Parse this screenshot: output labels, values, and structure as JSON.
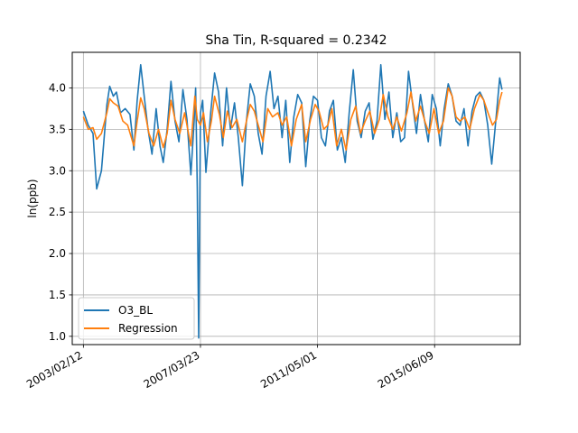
{
  "chart_data": {
    "type": "line",
    "title": "Sha Tin, R-squared = 0.2342",
    "xlabel": "",
    "ylabel": "ln(ppb)",
    "ylim": [
      0.9,
      4.43
    ],
    "xlim": [
      "2002-09-22",
      "2018-06-10"
    ],
    "x_ticks": [
      "2003/02/12",
      "2007/03/23",
      "2011/05/01",
      "2015/06/09"
    ],
    "y_ticks": [
      1.0,
      1.5,
      2.0,
      2.5,
      3.0,
      3.5,
      4.0
    ],
    "grid": true,
    "legend_position": "lower-left",
    "series": [
      {
        "name": "O3_BL",
        "color": "#1f77b4",
        "points": [
          [
            "2003-02-12",
            3.72
          ],
          [
            "2003-04-15",
            3.55
          ],
          [
            "2003-06-15",
            3.45
          ],
          [
            "2003-08-01",
            2.78
          ],
          [
            "2003-10-01",
            3.0
          ],
          [
            "2003-12-10",
            3.8
          ],
          [
            "2004-01-15",
            4.02
          ],
          [
            "2004-03-01",
            3.9
          ],
          [
            "2004-04-10",
            3.95
          ],
          [
            "2004-06-01",
            3.7
          ],
          [
            "2004-08-01",
            3.75
          ],
          [
            "2004-10-01",
            3.68
          ],
          [
            "2004-11-20",
            3.25
          ],
          [
            "2005-01-01",
            3.85
          ],
          [
            "2005-02-15",
            4.28
          ],
          [
            "2005-04-01",
            3.9
          ],
          [
            "2005-05-20",
            3.5
          ],
          [
            "2005-07-10",
            3.2
          ],
          [
            "2005-09-01",
            3.75
          ],
          [
            "2005-10-20",
            3.3
          ],
          [
            "2005-12-01",
            3.1
          ],
          [
            "2006-01-20",
            3.5
          ],
          [
            "2006-03-10",
            4.08
          ],
          [
            "2006-05-01",
            3.6
          ],
          [
            "2006-06-20",
            3.35
          ],
          [
            "2006-08-10",
            3.98
          ],
          [
            "2006-10-01",
            3.62
          ],
          [
            "2006-11-20",
            2.95
          ],
          [
            "2007-01-01",
            3.6
          ],
          [
            "2007-01-20",
            4.0
          ],
          [
            "2007-02-10",
            2.8
          ],
          [
            "2007-02-28",
            0.98
          ],
          [
            "2007-03-23",
            3.7
          ],
          [
            "2007-04-20",
            3.85
          ],
          [
            "2007-06-01",
            2.98
          ],
          [
            "2007-08-01",
            3.7
          ],
          [
            "2007-09-20",
            4.18
          ],
          [
            "2007-11-10",
            3.95
          ],
          [
            "2008-01-01",
            3.3
          ],
          [
            "2008-02-20",
            4.0
          ],
          [
            "2008-04-10",
            3.5
          ],
          [
            "2008-06-01",
            3.82
          ],
          [
            "2008-07-20",
            3.4
          ],
          [
            "2008-09-10",
            2.82
          ],
          [
            "2008-11-01",
            3.6
          ],
          [
            "2008-12-20",
            4.05
          ],
          [
            "2009-02-10",
            3.9
          ],
          [
            "2009-04-01",
            3.45
          ],
          [
            "2009-05-20",
            3.2
          ],
          [
            "2009-07-10",
            3.9
          ],
          [
            "2009-09-01",
            4.2
          ],
          [
            "2009-10-20",
            3.75
          ],
          [
            "2009-12-10",
            3.9
          ],
          [
            "2010-02-01",
            3.4
          ],
          [
            "2010-03-20",
            3.85
          ],
          [
            "2010-05-10",
            3.1
          ],
          [
            "2010-07-01",
            3.65
          ],
          [
            "2010-08-20",
            3.92
          ],
          [
            "2010-10-10",
            3.82
          ],
          [
            "2010-12-01",
            3.05
          ],
          [
            "2011-01-20",
            3.6
          ],
          [
            "2011-03-10",
            3.9
          ],
          [
            "2011-05-01",
            3.85
          ],
          [
            "2011-06-20",
            3.4
          ],
          [
            "2011-08-10",
            3.3
          ],
          [
            "2011-10-01",
            3.72
          ],
          [
            "2011-11-20",
            3.85
          ],
          [
            "2012-01-10",
            3.25
          ],
          [
            "2012-03-01",
            3.4
          ],
          [
            "2012-04-20",
            3.1
          ],
          [
            "2012-06-10",
            3.7
          ],
          [
            "2012-08-01",
            4.22
          ],
          [
            "2012-09-20",
            3.6
          ],
          [
            "2012-11-10",
            3.4
          ],
          [
            "2013-01-01",
            3.72
          ],
          [
            "2013-02-20",
            3.82
          ],
          [
            "2013-04-10",
            3.38
          ],
          [
            "2013-06-01",
            3.6
          ],
          [
            "2013-07-20",
            4.28
          ],
          [
            "2013-09-10",
            3.62
          ],
          [
            "2013-11-01",
            3.95
          ],
          [
            "2013-12-20",
            3.4
          ],
          [
            "2014-02-10",
            3.7
          ],
          [
            "2014-04-01",
            3.35
          ],
          [
            "2014-05-20",
            3.4
          ],
          [
            "2014-07-10",
            4.2
          ],
          [
            "2014-09-01",
            3.8
          ],
          [
            "2014-10-20",
            3.45
          ],
          [
            "2014-12-10",
            3.92
          ],
          [
            "2015-02-01",
            3.6
          ],
          [
            "2015-03-20",
            3.35
          ],
          [
            "2015-05-10",
            3.92
          ],
          [
            "2015-07-01",
            3.75
          ],
          [
            "2015-08-20",
            3.3
          ],
          [
            "2015-10-10",
            3.75
          ],
          [
            "2015-12-01",
            4.05
          ],
          [
            "2016-01-20",
            3.9
          ],
          [
            "2016-03-10",
            3.6
          ],
          [
            "2016-05-01",
            3.55
          ],
          [
            "2016-06-20",
            3.75
          ],
          [
            "2016-08-10",
            3.3
          ],
          [
            "2016-10-01",
            3.72
          ],
          [
            "2016-11-20",
            3.9
          ],
          [
            "2017-01-10",
            3.95
          ],
          [
            "2017-03-01",
            3.85
          ],
          [
            "2017-04-20",
            3.55
          ],
          [
            "2017-06-10",
            3.08
          ],
          [
            "2017-08-01",
            3.6
          ],
          [
            "2017-09-20",
            4.12
          ],
          [
            "2017-10-20",
            3.98
          ]
        ]
      },
      {
        "name": "Regression",
        "color": "#ff7f0e",
        "points": [
          [
            "2003-02-12",
            3.65
          ],
          [
            "2003-04-15",
            3.5
          ],
          [
            "2003-06-15",
            3.52
          ],
          [
            "2003-08-01",
            3.38
          ],
          [
            "2003-10-01",
            3.45
          ],
          [
            "2003-12-10",
            3.7
          ],
          [
            "2004-01-15",
            3.87
          ],
          [
            "2004-03-01",
            3.82
          ],
          [
            "2004-05-01",
            3.78
          ],
          [
            "2004-07-01",
            3.6
          ],
          [
            "2004-09-01",
            3.55
          ],
          [
            "2004-11-20",
            3.3
          ],
          [
            "2005-01-01",
            3.6
          ],
          [
            "2005-02-15",
            3.88
          ],
          [
            "2005-04-01",
            3.75
          ],
          [
            "2005-06-01",
            3.45
          ],
          [
            "2005-08-01",
            3.3
          ],
          [
            "2005-10-01",
            3.5
          ],
          [
            "2005-12-01",
            3.28
          ],
          [
            "2006-01-20",
            3.45
          ],
          [
            "2006-03-10",
            3.85
          ],
          [
            "2006-05-01",
            3.62
          ],
          [
            "2006-07-01",
            3.45
          ],
          [
            "2006-09-01",
            3.7
          ],
          [
            "2006-11-20",
            3.3
          ],
          [
            "2007-01-10",
            3.9
          ],
          [
            "2007-02-10",
            3.62
          ],
          [
            "2007-03-23",
            3.55
          ],
          [
            "2007-05-01",
            3.7
          ],
          [
            "2007-06-20",
            3.35
          ],
          [
            "2007-08-10",
            3.6
          ],
          [
            "2007-09-20",
            3.9
          ],
          [
            "2007-11-20",
            3.68
          ],
          [
            "2008-01-10",
            3.4
          ],
          [
            "2008-03-01",
            3.72
          ],
          [
            "2008-05-01",
            3.52
          ],
          [
            "2008-07-01",
            3.62
          ],
          [
            "2008-09-10",
            3.35
          ],
          [
            "2008-11-01",
            3.6
          ],
          [
            "2008-12-20",
            3.8
          ],
          [
            "2009-02-10",
            3.72
          ],
          [
            "2009-04-01",
            3.55
          ],
          [
            "2009-06-01",
            3.35
          ],
          [
            "2009-08-01",
            3.75
          ],
          [
            "2009-10-01",
            3.65
          ],
          [
            "2009-12-10",
            3.7
          ],
          [
            "2010-02-01",
            3.55
          ],
          [
            "2010-04-01",
            3.65
          ],
          [
            "2010-06-01",
            3.3
          ],
          [
            "2010-08-01",
            3.62
          ],
          [
            "2010-10-10",
            3.8
          ],
          [
            "2010-12-01",
            3.35
          ],
          [
            "2011-02-01",
            3.62
          ],
          [
            "2011-04-01",
            3.8
          ],
          [
            "2011-05-20",
            3.72
          ],
          [
            "2011-07-20",
            3.5
          ],
          [
            "2011-09-10",
            3.55
          ],
          [
            "2011-11-01",
            3.75
          ],
          [
            "2012-01-01",
            3.3
          ],
          [
            "2012-03-01",
            3.5
          ],
          [
            "2012-05-01",
            3.25
          ],
          [
            "2012-07-01",
            3.62
          ],
          [
            "2012-09-01",
            3.78
          ],
          [
            "2012-11-01",
            3.45
          ],
          [
            "2013-01-01",
            3.6
          ],
          [
            "2013-03-01",
            3.72
          ],
          [
            "2013-05-01",
            3.45
          ],
          [
            "2013-07-01",
            3.62
          ],
          [
            "2013-08-20",
            3.92
          ],
          [
            "2013-10-20",
            3.65
          ],
          [
            "2013-12-20",
            3.5
          ],
          [
            "2014-02-10",
            3.65
          ],
          [
            "2014-04-10",
            3.48
          ],
          [
            "2014-06-20",
            3.7
          ],
          [
            "2014-08-10",
            3.95
          ],
          [
            "2014-10-10",
            3.6
          ],
          [
            "2014-12-10",
            3.78
          ],
          [
            "2015-02-10",
            3.58
          ],
          [
            "2015-04-01",
            3.45
          ],
          [
            "2015-06-01",
            3.75
          ],
          [
            "2015-08-01",
            3.45
          ],
          [
            "2015-10-01",
            3.6
          ],
          [
            "2015-12-01",
            4.0
          ],
          [
            "2016-01-20",
            3.9
          ],
          [
            "2016-03-10",
            3.65
          ],
          [
            "2016-05-01",
            3.6
          ],
          [
            "2016-07-01",
            3.65
          ],
          [
            "2016-09-01",
            3.5
          ],
          [
            "2016-11-01",
            3.75
          ],
          [
            "2017-01-10",
            3.92
          ],
          [
            "2017-03-01",
            3.85
          ],
          [
            "2017-05-01",
            3.68
          ],
          [
            "2017-06-20",
            3.55
          ],
          [
            "2017-08-10",
            3.62
          ],
          [
            "2017-09-20",
            3.85
          ],
          [
            "2017-10-20",
            3.95
          ]
        ]
      }
    ]
  }
}
